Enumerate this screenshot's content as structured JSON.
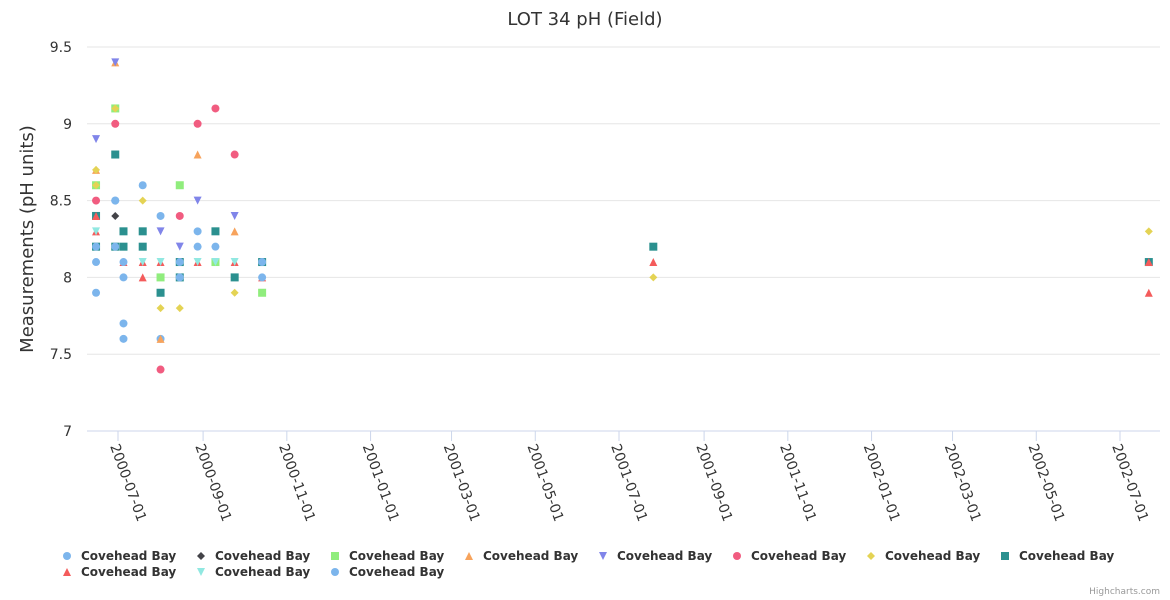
{
  "chart_data": {
    "type": "scatter",
    "title": "LOT 34 pH (Field)",
    "xlabel": "",
    "ylabel": "Measurements (pH units)",
    "ylim": [
      7,
      9.5
    ],
    "yticks": [
      "7",
      "7.5",
      "8",
      "8.5",
      "9",
      "9.5"
    ],
    "xticks": [
      "2000-07-01",
      "2000-09-01",
      "2000-11-01",
      "2001-01-01",
      "2001-03-01",
      "2001-05-01",
      "2001-07-01",
      "2001-09-01",
      "2001-11-01",
      "2002-01-01",
      "2002-03-01",
      "2002-05-01",
      "2002-07-01"
    ],
    "grid": true,
    "legend_position": "bottom",
    "credit": "Highcharts.com",
    "series": [
      {
        "name": "Covehead Bay",
        "color": "#7cb5ec",
        "symbol": "circle",
        "points": [
          [
            "2000-06-15",
            8.1
          ],
          [
            "2000-06-15",
            7.9
          ],
          [
            "2000-06-29",
            8.5
          ],
          [
            "2000-07-05",
            8.0
          ],
          [
            "2000-07-05",
            7.7
          ],
          [
            "2000-07-05",
            7.6
          ],
          [
            "2000-07-19",
            8.6
          ],
          [
            "2000-08-01",
            8.4
          ],
          [
            "2000-08-01",
            7.6
          ],
          [
            "2000-08-28",
            8.3
          ]
        ]
      },
      {
        "name": "Covehead Bay",
        "color": "#434348",
        "symbol": "diamond",
        "points": [
          [
            "2000-06-29",
            8.4
          ]
        ]
      },
      {
        "name": "Covehead Bay",
        "color": "#90ed7d",
        "symbol": "square",
        "points": [
          [
            "2000-06-15",
            8.6
          ],
          [
            "2000-06-29",
            9.1
          ],
          [
            "2000-08-01",
            8.0
          ],
          [
            "2000-08-15",
            8.6
          ],
          [
            "2000-09-10",
            8.1
          ],
          [
            "2000-10-14",
            7.9
          ]
        ]
      },
      {
        "name": "Covehead Bay",
        "color": "#f7a35c",
        "symbol": "triangle",
        "points": [
          [
            "2000-06-15",
            8.7
          ],
          [
            "2000-06-29",
            9.4
          ],
          [
            "2000-08-01",
            7.6
          ],
          [
            "2000-08-28",
            8.8
          ],
          [
            "2000-09-24",
            8.3
          ]
        ]
      },
      {
        "name": "Covehead Bay",
        "color": "#8085e9",
        "symbol": "triangle-down",
        "points": [
          [
            "2000-06-15",
            8.9
          ],
          [
            "2000-06-29",
            9.4
          ],
          [
            "2000-08-01",
            8.3
          ],
          [
            "2000-08-15",
            8.2
          ],
          [
            "2000-08-28",
            8.5
          ],
          [
            "2000-09-24",
            8.4
          ]
        ]
      },
      {
        "name": "Covehead Bay",
        "color": "#f15c80",
        "symbol": "circle",
        "points": [
          [
            "2000-06-15",
            8.5
          ],
          [
            "2000-06-29",
            9.0
          ],
          [
            "2000-08-01",
            7.4
          ],
          [
            "2000-08-15",
            8.4
          ],
          [
            "2000-08-28",
            9.0
          ],
          [
            "2000-09-10",
            9.1
          ],
          [
            "2000-09-24",
            8.8
          ]
        ]
      },
      {
        "name": "Covehead Bay",
        "color": "#e4d354",
        "symbol": "diamond",
        "points": [
          [
            "2000-06-15",
            8.7
          ],
          [
            "2000-06-15",
            8.6
          ],
          [
            "2000-06-29",
            9.1
          ],
          [
            "2000-07-19",
            8.5
          ],
          [
            "2000-08-01",
            7.8
          ],
          [
            "2000-08-15",
            7.8
          ],
          [
            "2000-09-24",
            7.9
          ],
          [
            "2001-07-26",
            8.0
          ],
          [
            "2002-07-22",
            8.3
          ]
        ]
      },
      {
        "name": "Covehead Bay",
        "color": "#2b908f",
        "symbol": "square",
        "points": [
          [
            "2000-06-15",
            8.4
          ],
          [
            "2000-06-15",
            8.2
          ],
          [
            "2000-06-29",
            8.8
          ],
          [
            "2000-06-29",
            8.2
          ],
          [
            "2000-07-05",
            8.3
          ],
          [
            "2000-07-05",
            8.2
          ],
          [
            "2000-07-19",
            8.3
          ],
          [
            "2000-07-19",
            8.2
          ],
          [
            "2000-08-01",
            7.9
          ],
          [
            "2000-08-15",
            8.1
          ],
          [
            "2000-08-15",
            8.0
          ],
          [
            "2000-09-10",
            8.3
          ],
          [
            "2000-09-24",
            8.0
          ],
          [
            "2000-10-14",
            8.1
          ],
          [
            "2001-07-26",
            8.2
          ],
          [
            "2002-07-22",
            8.1
          ]
        ]
      },
      {
        "name": "Covehead Bay",
        "color": "#f45b5b",
        "symbol": "triangle",
        "points": [
          [
            "2000-06-15",
            8.4
          ],
          [
            "2000-06-15",
            8.3
          ],
          [
            "2000-07-05",
            8.1
          ],
          [
            "2000-07-19",
            8.1
          ],
          [
            "2000-07-19",
            8.0
          ],
          [
            "2000-08-01",
            8.1
          ],
          [
            "2000-08-28",
            8.1
          ],
          [
            "2000-09-24",
            8.1
          ],
          [
            "2000-10-14",
            8.0
          ],
          [
            "2001-07-26",
            8.1
          ],
          [
            "2002-07-22",
            8.1
          ],
          [
            "2002-07-22",
            7.9
          ]
        ]
      },
      {
        "name": "Covehead Bay",
        "color": "#91e8e1",
        "symbol": "triangle-down",
        "points": [
          [
            "2000-06-15",
            8.3
          ],
          [
            "2000-07-19",
            8.1
          ],
          [
            "2000-08-01",
            8.1
          ],
          [
            "2000-08-28",
            8.1
          ],
          [
            "2000-09-10",
            8.1
          ],
          [
            "2000-09-24",
            8.1
          ]
        ]
      },
      {
        "name": "Covehead Bay",
        "color": "#7cb5ec",
        "symbol": "circle",
        "points": [
          [
            "2000-06-15",
            8.2
          ],
          [
            "2000-06-29",
            8.2
          ],
          [
            "2000-07-05",
            8.1
          ],
          [
            "2000-08-15",
            8.1
          ],
          [
            "2000-08-15",
            8.0
          ],
          [
            "2000-08-28",
            8.2
          ],
          [
            "2000-09-10",
            8.2
          ],
          [
            "2000-10-14",
            8.1
          ],
          [
            "2000-10-14",
            8.0
          ],
          [
            "2000-06-29",
            8.5
          ]
        ]
      }
    ]
  }
}
